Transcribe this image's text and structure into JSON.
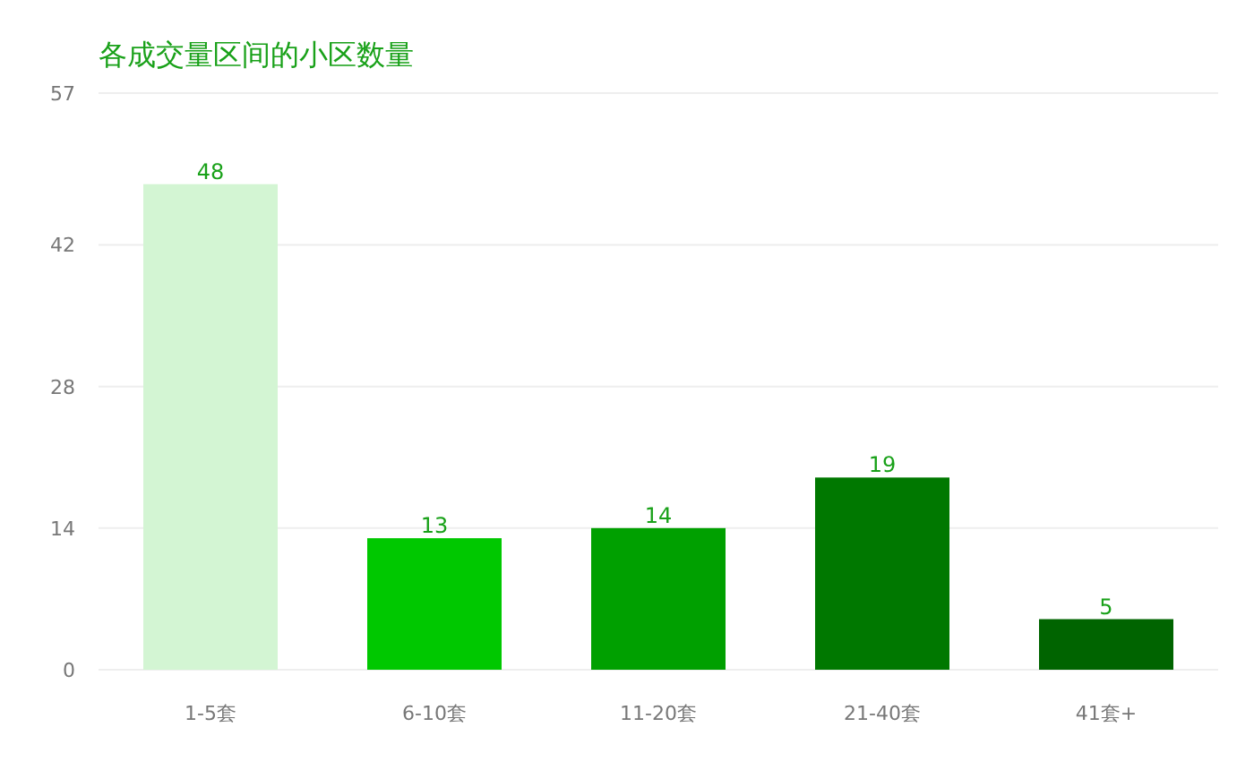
{
  "chart_data": {
    "type": "bar",
    "title": "各成交量区间的小区数量",
    "categories": [
      "1-5套",
      "6-10套",
      "11-20套",
      "21-40套",
      "41套+"
    ],
    "values": [
      48,
      13,
      14,
      19,
      5
    ],
    "colors": [
      "#d3f5d3",
      "#00c800",
      "#00a000",
      "#007800",
      "#006400"
    ],
    "ylim": [
      0,
      57
    ],
    "yticks": [
      0,
      14,
      28,
      42,
      57
    ],
    "grid": "y",
    "data_labels": true
  }
}
